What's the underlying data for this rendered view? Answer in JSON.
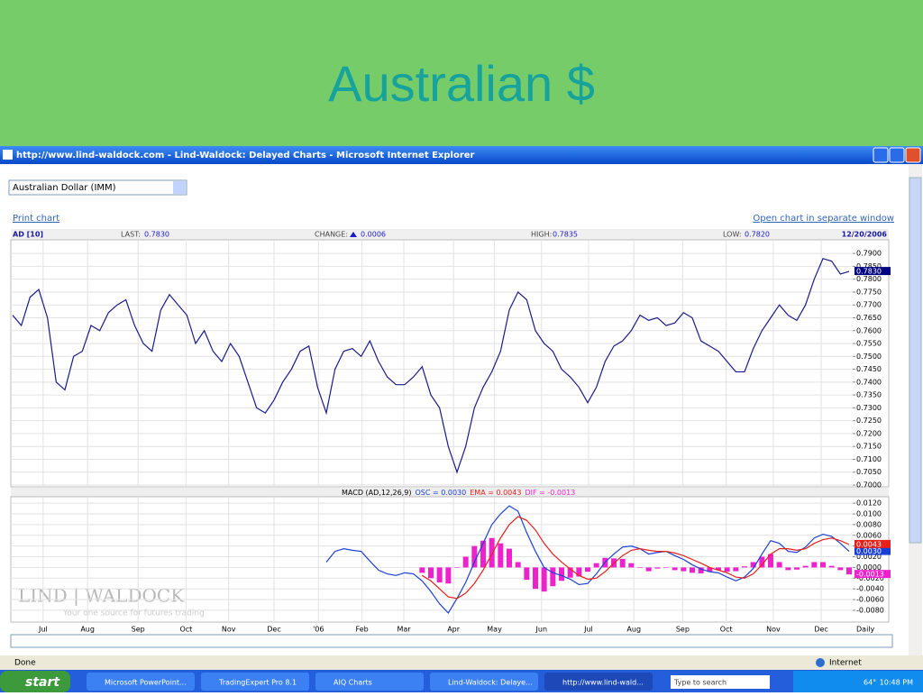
{
  "slide": {
    "title": "Australian $"
  },
  "browser": {
    "title": "http://www.lind-waldock.com - Lind-Waldock: Delayed Charts - Microsoft Internet Explorer",
    "status": "Done",
    "zone": "Internet"
  },
  "page": {
    "dropdown": "Australian Dollar (IMM)",
    "print_link": "Print chart",
    "open_link": "Open chart in separate window",
    "logo": "LIND | WALDOCK",
    "tagline": "Your one source for futures trading"
  },
  "chart_data": [
    {
      "type": "line",
      "symbol": "AD [10]",
      "date": "12/20/2006",
      "info": [
        {
          "label": "LAST:",
          "value": "0.7830"
        },
        {
          "label": "CHANGE:",
          "value": "0.0006"
        },
        {
          "label": "HIGH:",
          "value": "0.7835"
        },
        {
          "label": "LOW:",
          "value": "0.7820"
        }
      ],
      "x": [
        0,
        1,
        2,
        3,
        4,
        5,
        6,
        7,
        8,
        9,
        10,
        11,
        12,
        13,
        14,
        15,
        16,
        17,
        18,
        19,
        20,
        21,
        22,
        23,
        24,
        25,
        26,
        27,
        28,
        29,
        30,
        31,
        32,
        33,
        34,
        35,
        36,
        37,
        38,
        39,
        40,
        41,
        42,
        43,
        44,
        45,
        46,
        47,
        48,
        49,
        50,
        51,
        52,
        53,
        54,
        55,
        56,
        57,
        58,
        59,
        60,
        61,
        62,
        63,
        64,
        65,
        66,
        67,
        68,
        69,
        70,
        71,
        72,
        73,
        74,
        75,
        76,
        77,
        78,
        79,
        80,
        81,
        82,
        83,
        84,
        85,
        86,
        87,
        88,
        89,
        90,
        91,
        92,
        93,
        94,
        95,
        96
      ],
      "series": [
        {
          "name": "AD",
          "color": "#1a1a8c",
          "values": [
            0.766,
            0.762,
            0.773,
            0.776,
            0.765,
            0.74,
            0.737,
            0.75,
            0.752,
            0.762,
            0.76,
            0.767,
            0.77,
            0.772,
            0.762,
            0.755,
            0.752,
            0.768,
            0.774,
            0.77,
            0.766,
            0.755,
            0.76,
            0.752,
            0.748,
            0.755,
            0.75,
            0.74,
            0.73,
            0.728,
            0.733,
            0.74,
            0.745,
            0.752,
            0.754,
            0.738,
            0.728,
            0.745,
            0.752,
            0.753,
            0.75,
            0.756,
            0.748,
            0.742,
            0.739,
            0.739,
            0.742,
            0.746,
            0.735,
            0.73,
            0.715,
            0.705,
            0.715,
            0.73,
            0.738,
            0.744,
            0.752,
            0.768,
            0.775,
            0.772,
            0.76,
            0.755,
            0.752,
            0.745,
            0.742,
            0.738,
            0.732,
            0.738,
            0.748,
            0.754,
            0.756,
            0.76,
            0.766,
            0.764,
            0.765,
            0.762,
            0.763,
            0.767,
            0.765,
            0.756,
            0.754,
            0.752,
            0.748,
            0.744,
            0.744,
            0.753,
            0.76,
            0.765,
            0.77,
            0.766,
            0.764,
            0.77,
            0.78,
            0.788,
            0.787,
            0.782,
            0.783
          ]
        }
      ],
      "xlim": [
        0,
        96
      ],
      "ylim": [
        0.6993,
        0.7953
      ],
      "yticks": [
        {
          "value": 0.7,
          "label": "0.7000"
        },
        {
          "value": 0.705,
          "label": "0.7050"
        },
        {
          "value": 0.71,
          "label": "0.7100"
        },
        {
          "value": 0.715,
          "label": "0.7150"
        },
        {
          "value": 0.72,
          "label": "0.7200"
        },
        {
          "value": 0.725,
          "label": "0.7250"
        },
        {
          "value": 0.73,
          "label": "0.7300"
        },
        {
          "value": 0.735,
          "label": "0.7350"
        },
        {
          "value": 0.74,
          "label": "0.7400"
        },
        {
          "value": 0.745,
          "label": "0.7450"
        },
        {
          "value": 0.75,
          "label": "0.7500"
        },
        {
          "value": 0.755,
          "label": "0.7550"
        },
        {
          "value": 0.76,
          "label": "0.7600"
        },
        {
          "value": 0.765,
          "label": "0.7650"
        },
        {
          "value": 0.77,
          "label": "0.7700"
        },
        {
          "value": 0.775,
          "label": "0.7750"
        },
        {
          "value": 0.78,
          "label": "0.7800"
        },
        {
          "value": 0.785,
          "label": "0.7850"
        },
        {
          "value": 0.79,
          "label": "0.7900"
        }
      ],
      "grid": true
    },
    {
      "type": "line",
      "title": "MACD (AD,12,26,9)",
      "period": "Daily",
      "series": [
        {
          "name": "OSC = 0.0030",
          "tag": "0.0030",
          "color": "#1a3fd6",
          "values": [
            null,
            null,
            null,
            null,
            null,
            null,
            null,
            null,
            null,
            null,
            null,
            null,
            null,
            null,
            null,
            null,
            null,
            null,
            null,
            null,
            null,
            null,
            null,
            null,
            null,
            null,
            null,
            null,
            null,
            null,
            null,
            null,
            null,
            null,
            null,
            null,
            0.001,
            0.003,
            0.0035,
            0.0032,
            0.003,
            0.0012,
            -0.0005,
            -0.0012,
            -0.0015,
            -0.001,
            -0.0012,
            -0.0025,
            -0.0045,
            -0.0068,
            -0.0085,
            -0.0058,
            -0.0028,
            0.001,
            0.0045,
            0.008,
            0.01,
            0.0115,
            0.0105,
            0.0065,
            0.003,
            0.0,
            -0.001,
            -0.0015,
            -0.0022,
            -0.0032,
            -0.003,
            -0.0012,
            0.001,
            0.0025,
            0.0038,
            0.004,
            0.0035,
            0.0025,
            0.0028,
            0.003,
            0.0022,
            0.0015,
            0.0005,
            -0.0003,
            -0.0008,
            -0.001,
            -0.0018,
            -0.0025,
            -0.0018,
            -0.0002,
            0.0025,
            0.005,
            0.0045,
            0.003,
            0.0028,
            0.0038,
            0.0055,
            0.0062,
            0.0058,
            0.0045,
            0.003
          ]
        },
        {
          "name": "EMA = 0.0043",
          "tag": "0.0043",
          "color": "#e8201a",
          "values": [
            null,
            null,
            null,
            null,
            null,
            null,
            null,
            null,
            null,
            null,
            null,
            null,
            null,
            null,
            null,
            null,
            null,
            null,
            null,
            null,
            null,
            null,
            null,
            null,
            null,
            null,
            null,
            null,
            null,
            null,
            null,
            null,
            null,
            null,
            null,
            null,
            null,
            null,
            null,
            null,
            null,
            null,
            null,
            null,
            null,
            null,
            null,
            -0.0015,
            -0.0025,
            -0.004,
            -0.0055,
            -0.0058,
            -0.0048,
            -0.003,
            -0.0005,
            0.0025,
            0.0055,
            0.008,
            0.0095,
            0.0088,
            0.007,
            0.0045,
            0.0025,
            0.001,
            -0.0003,
            -0.0015,
            -0.0022,
            -0.002,
            -0.0008,
            0.0008,
            0.0022,
            0.0032,
            0.0035,
            0.0032,
            0.003,
            0.003,
            0.0027,
            0.0022,
            0.0015,
            0.0008,
            0.0,
            -0.0005,
            -0.001,
            -0.0018,
            -0.002,
            -0.0012,
            0.0005,
            0.0025,
            0.0035,
            0.0035,
            0.0032,
            0.0035,
            0.0045,
            0.0052,
            0.0055,
            0.005,
            0.0043
          ]
        },
        {
          "name": "DIF = -0.0013",
          "tag": "-0.0013",
          "color": "#ee22cc",
          "type": "bar",
          "values": [
            null,
            null,
            null,
            null,
            null,
            null,
            null,
            null,
            null,
            null,
            null,
            null,
            null,
            null,
            null,
            null,
            null,
            null,
            null,
            null,
            null,
            null,
            null,
            null,
            null,
            null,
            null,
            null,
            null,
            null,
            null,
            null,
            null,
            null,
            null,
            null,
            null,
            null,
            null,
            null,
            null,
            null,
            null,
            null,
            null,
            null,
            null,
            -0.001,
            -0.002,
            -0.0028,
            -0.003,
            0.0,
            0.002,
            0.004,
            0.005,
            0.0055,
            0.0045,
            0.0035,
            0.001,
            -0.0023,
            -0.004,
            -0.0045,
            -0.0035,
            -0.0025,
            -0.0019,
            -0.0017,
            -0.0008,
            0.0008,
            0.0018,
            0.0017,
            0.0016,
            0.0008,
            0.0,
            -0.0007,
            -0.0002,
            0.0,
            -0.0005,
            -0.0007,
            -0.001,
            -0.0011,
            -0.0008,
            -0.0005,
            -0.0008,
            -0.0007,
            0.0002,
            0.001,
            0.002,
            0.0025,
            0.001,
            -0.0005,
            -0.0004,
            0.0003,
            0.001,
            0.001,
            0.0003,
            -0.0005,
            -0.0013
          ]
        }
      ],
      "xlim": [
        0,
        96
      ],
      "ylim": [
        -0.0102,
        0.0132
      ],
      "xticks": [
        {
          "value": 3.5,
          "label": "Jul"
        },
        {
          "value": 8.6,
          "label": "Aug"
        },
        {
          "value": 14.4,
          "label": "Sep"
        },
        {
          "value": 19.9,
          "label": "Oct"
        },
        {
          "value": 24.8,
          "label": "Nov"
        },
        {
          "value": 30,
          "label": "Dec"
        },
        {
          "value": 35.1,
          "label": "'06"
        },
        {
          "value": 40.1,
          "label": "Feb"
        },
        {
          "value": 44.9,
          "label": "Mar"
        },
        {
          "value": 50.6,
          "label": "Apr"
        },
        {
          "value": 55.3,
          "label": "May"
        },
        {
          "value": 60.7,
          "label": "Jun"
        },
        {
          "value": 66.1,
          "label": "Jul"
        },
        {
          "value": 71.3,
          "label": "Aug"
        },
        {
          "value": 76.9,
          "label": "Sep"
        },
        {
          "value": 81.9,
          "label": "Oct"
        },
        {
          "value": 87.3,
          "label": "Nov"
        },
        {
          "value": 92.8,
          "label": "Dec"
        }
      ],
      "yticks": [
        {
          "value": -0.008,
          "label": "-0.0080"
        },
        {
          "value": -0.006,
          "label": "-0.0060"
        },
        {
          "value": -0.004,
          "label": "-0.0040"
        },
        {
          "value": -0.002,
          "label": "-0.0020"
        },
        {
          "value": 0,
          "label": "0.0000"
        },
        {
          "value": 0.002,
          "label": "0.0020"
        },
        {
          "value": 0.004,
          "label": "0.0040"
        },
        {
          "value": 0.006,
          "label": "0.0060"
        },
        {
          "value": 0.008,
          "label": "0.0080"
        },
        {
          "value": 0.01,
          "label": "0.0100"
        },
        {
          "value": 0.012,
          "label": "0.0120"
        }
      ],
      "grid": true
    }
  ],
  "taskbar": {
    "start": "start",
    "items": [
      "Microsoft PowerPoint...",
      "TradingExpert Pro 8.1",
      "AIQ Charts",
      "Lind-Waldock: Delaye...",
      "http://www.lind-wald..."
    ],
    "search": "Type to search",
    "temp": "64°",
    "clock": "10:48 PM"
  }
}
